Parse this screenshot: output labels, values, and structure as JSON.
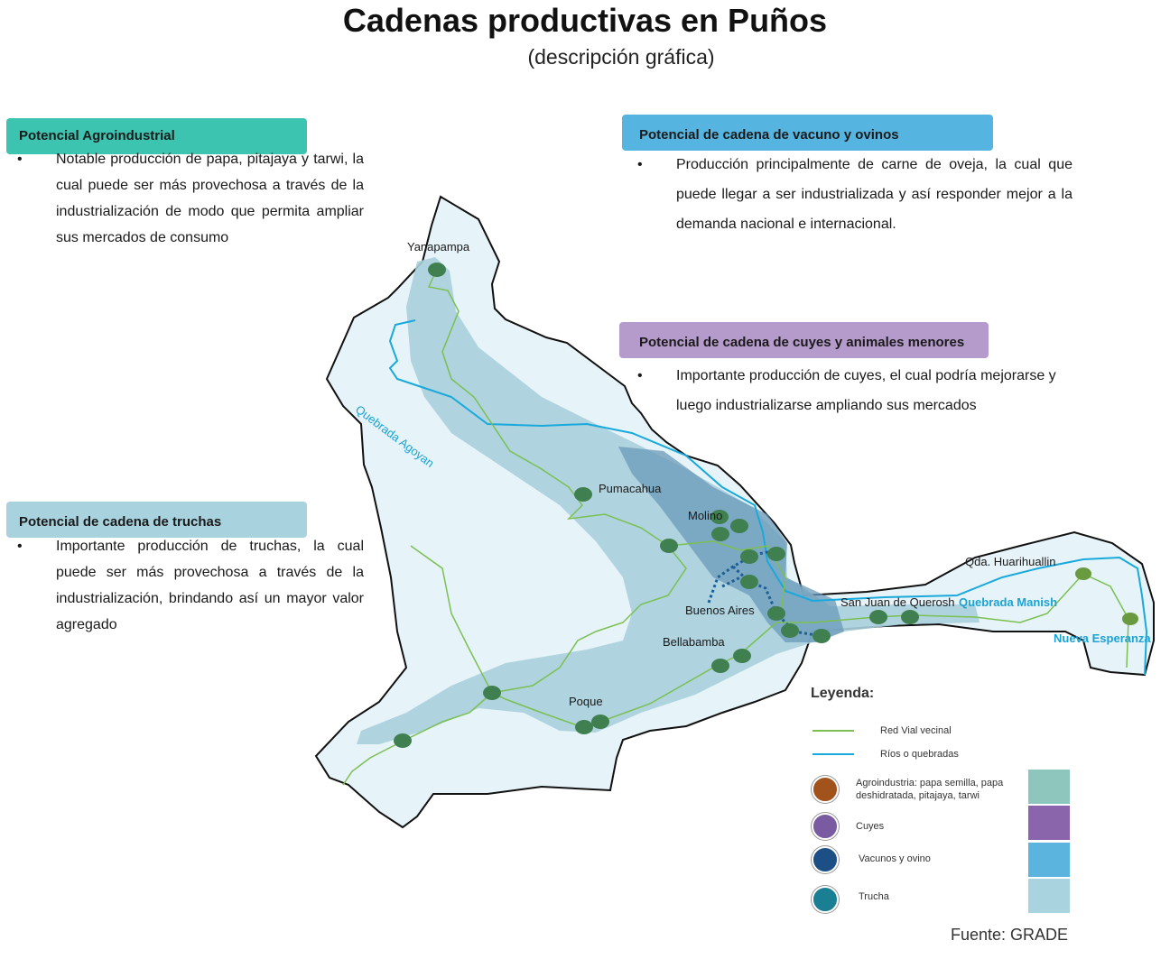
{
  "title": "Cadenas productivas en Puños",
  "subtitle": "(descripción gráfica)",
  "panels": {
    "agro": {
      "heading": "Potencial Agroindustrial",
      "text": "Notable producción de papa, pitajaya y tarwi, la cual puede ser más provechosa a través de la industrialización de modo que  permita ampliar sus mercados de consumo",
      "color": "#3cc4b0"
    },
    "vacuno": {
      "heading": "Potencial de cadena de vacuno y ovinos",
      "text": "Producción principalmente de carne de oveja, la cual que puede llegar a ser industrializada y así responder mejor a  la demanda nacional e internacional.",
      "color": "#55b4e0"
    },
    "cuyes": {
      "heading": "Potencial de cadena de cuyes y animales menores",
      "text": "Importante producción de cuyes, el cual podría mejorarse y luego industrializarse ampliando sus mercados",
      "color": "#b59bcb"
    },
    "truchas": {
      "heading": "Potencial de cadena de truchas",
      "text": "Importante producción de truchas, la cual puede ser más provechosa a través de la industrialización, brindando así un mayor valor agregado",
      "color": "#a8d3de"
    },
    "bullet": "•"
  },
  "map": {
    "places": {
      "yanapampa": "Yanapampa",
      "pumacahua": "Pumacahua",
      "molino": "Molino",
      "buenos_aires": "Buenos Aires",
      "bellabamba": "Bellabamba",
      "poque": "Poque",
      "san_juan": "San Juan de Querosh",
      "huarihuallin": "Qda. Huarihuallin"
    },
    "water_labels": {
      "agoyan": "Quebrada Agoyan",
      "manish": "Quebrada Manish",
      "nueva_esperanza": "Nueva Esperanza"
    },
    "colors": {
      "district_fill": "#e6f3f8",
      "trucha_zone": "#a8cfdc",
      "vacuno_zone": "#6a9ab8",
      "road": "#7cbf52",
      "river": "#19a9dc",
      "node": "#3f7f50"
    }
  },
  "legend": {
    "title": "Leyenda:",
    "road": "Red  Vial vecinal",
    "river": "Ríos  o quebradas",
    "agro": "Agroindustria:  papa semilla, papa deshidratada,  pitajaya,  tarwi",
    "cuyes": "Cuyes",
    "vacunos": "Vacunos  y ovino",
    "trucha": "Trucha",
    "colors": {
      "agro": "#8ec6bd",
      "cuyes": "#8b65ab",
      "vacunos": "#5ab4de",
      "trucha": "#a9d3de"
    }
  },
  "source": "Fuente: GRADE"
}
